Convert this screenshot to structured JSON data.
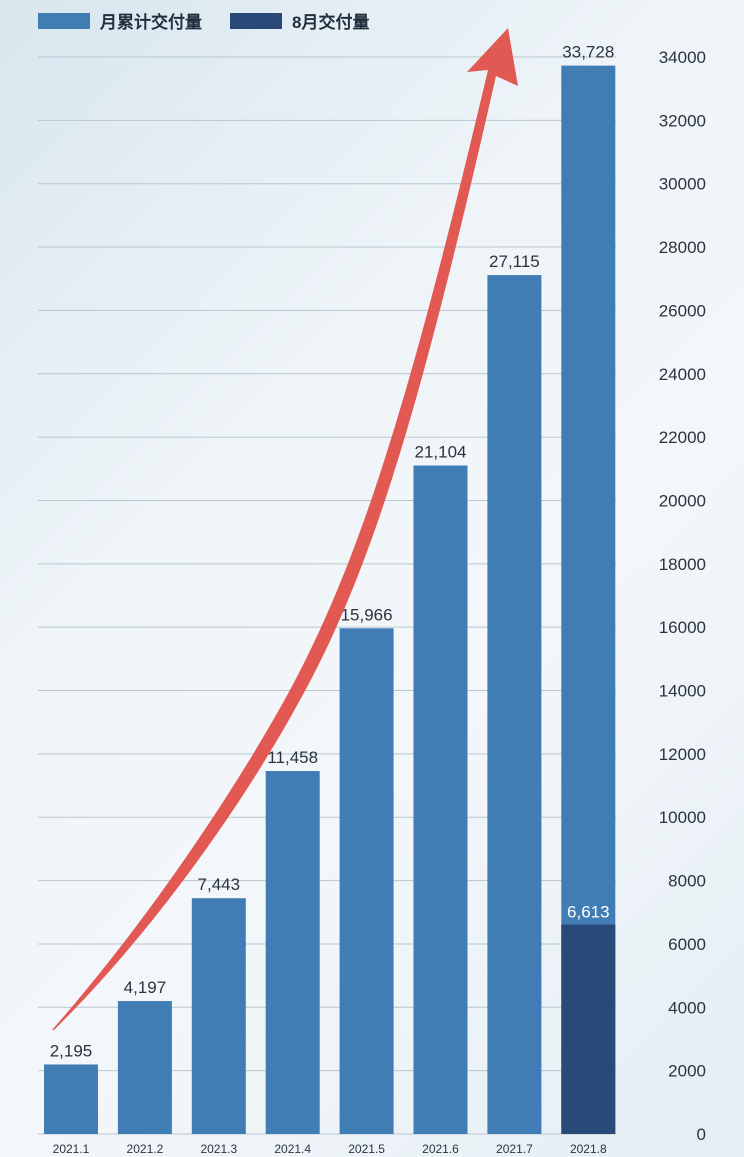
{
  "legend": {
    "cumulative_label": "月累计交付量",
    "august_label": "8月交付量"
  },
  "colors": {
    "cumulative": "#3f7db4",
    "august": "#294a78",
    "arrow": "#e0504a",
    "grid": "#b8c6d0",
    "text": "#2a3440"
  },
  "chart_data": {
    "type": "bar",
    "categories": [
      "2021.1",
      "2021.2",
      "2021.3",
      "2021.4",
      "2021.5",
      "2021.6",
      "2021.7",
      "2021.8"
    ],
    "series": [
      {
        "name": "月累计交付量",
        "values": [
          2195,
          4197,
          7443,
          11458,
          15966,
          21104,
          27115,
          33728
        ]
      },
      {
        "name": "8月交付量",
        "values": [
          null,
          null,
          null,
          null,
          null,
          null,
          null,
          6613
        ]
      }
    ],
    "data_labels": [
      "2,195",
      "4,197",
      "7,443",
      "11,458",
      "15,966",
      "21,104",
      "27,115",
      "33,728"
    ],
    "august_label": "6,613",
    "y_ticks": [
      "0",
      "2000",
      "4000",
      "6000",
      "8000",
      "10000",
      "12000",
      "14000",
      "16000",
      "18000",
      "20000",
      "22000",
      "24000",
      "26000",
      "28000",
      "30000",
      "32000",
      "34000"
    ],
    "ylim": [
      0,
      34000
    ],
    "y_axis_side": "right",
    "grid": true,
    "legend_position": "top-left",
    "annotation": "red upward trend arrow"
  }
}
